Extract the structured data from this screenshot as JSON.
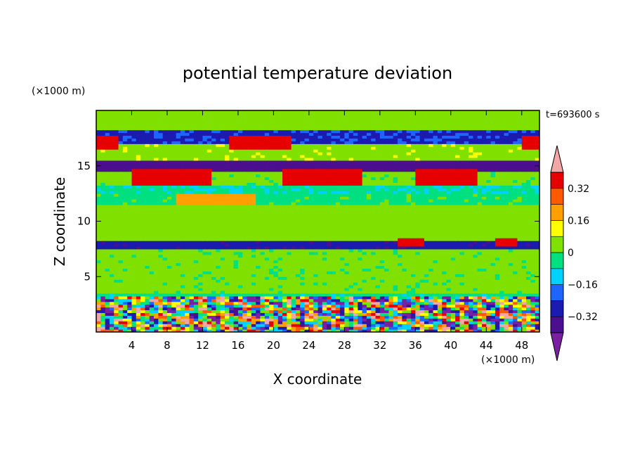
{
  "chart_data": {
    "type": "heatmap",
    "title": "potential temperature deviation",
    "xlabel": "X coordinate",
    "ylabel": "Z coordinate",
    "x_unit_label": "(×1000 m)",
    "y_unit_label": "(×1000 m)",
    "time_label": "t=693600 s",
    "xlim": [
      0,
      50
    ],
    "ylim": [
      0,
      20
    ],
    "x_ticks": [
      "4",
      "8",
      "12",
      "16",
      "20",
      "24",
      "28",
      "32",
      "36",
      "40",
      "44",
      "48"
    ],
    "y_ticks": [
      "5",
      "10",
      "15"
    ],
    "x_tick_values": [
      4,
      8,
      12,
      16,
      20,
      24,
      28,
      32,
      36,
      40,
      44,
      48
    ],
    "y_tick_values": [
      5,
      10,
      15
    ],
    "colorbar": {
      "levels": [
        -0.4,
        -0.32,
        -0.24,
        -0.16,
        -0.08,
        0,
        0.08,
        0.16,
        0.24,
        0.32,
        0.4
      ],
      "colors": [
        "#7a1fa2",
        "#4b0f8f",
        "#1b1bb0",
        "#1e64ff",
        "#00d2ff",
        "#00e080",
        "#80e000",
        "#ffff00",
        "#ffa000",
        "#ff5a00",
        "#e60000",
        "#f3a6a6"
      ],
      "tick_labels": [
        "0.32",
        "0.16",
        "0",
        "−0.16",
        "−0.32"
      ],
      "tick_values": [
        0.32,
        0.16,
        0,
        -0.16,
        -0.32
      ]
    },
    "bands": [
      {
        "z": [
          0,
          3.3
        ],
        "value": "mixed"
      },
      {
        "z": [
          3.3,
          3.6
        ],
        "value": -0.06
      },
      {
        "z": [
          3.6,
          7.6
        ],
        "value": 0.02
      },
      {
        "z": [
          7.6,
          8.2
        ],
        "value": -0.3
      },
      {
        "z": [
          8.2,
          11.5
        ],
        "value": 0.03
      },
      {
        "z": [
          11.5,
          12.4
        ],
        "value": -0.02
      },
      {
        "z": [
          12.4,
          13.3
        ],
        "value": -0.07
      },
      {
        "z": [
          13.3,
          14.6
        ],
        "value": 0.02
      },
      {
        "z": [
          14.6,
          15.6
        ],
        "value": -0.35
      },
      {
        "z": [
          15.6,
          17.0
        ],
        "value": 0.06
      },
      {
        "z": [
          17.0,
          18.3
        ],
        "value": -0.25
      },
      {
        "z": [
          18.3,
          20
        ],
        "value": 0.05
      }
    ]
  }
}
